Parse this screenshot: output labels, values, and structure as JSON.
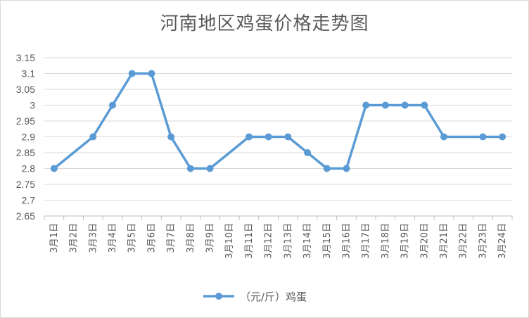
{
  "chart_data": {
    "type": "line",
    "title": "河南地区鸡蛋价格走势图",
    "categories": [
      "3月1日",
      "3月2日",
      "3月3日",
      "3月4日",
      "3月5日",
      "3月6日",
      "3月7日",
      "3月8日",
      "3月9日",
      "3月10日",
      "3月11日",
      "3月12日",
      "3月13日",
      "3月14日",
      "3月15日",
      "3月16日",
      "3月17日",
      "3月18日",
      "3月19日",
      "3月20日",
      "3月21日",
      "3月22日",
      "3月23日",
      "3月24日"
    ],
    "series": [
      {
        "name": "（元/斤）鸡蛋",
        "color": "#5b9bd5",
        "values": [
          2.8,
          null,
          2.9,
          3.0,
          3.1,
          3.1,
          2.9,
          2.8,
          2.8,
          null,
          2.9,
          2.9,
          2.9,
          2.85,
          2.8,
          2.8,
          3.0,
          3.0,
          3.0,
          3.0,
          2.9,
          null,
          2.9,
          2.9
        ]
      }
    ],
    "ylim": [
      2.65,
      3.15
    ],
    "yticks": [
      "2.65",
      "2.7",
      "2.75",
      "2.8",
      "2.85",
      "2.9",
      "2.95",
      "3",
      "3.05",
      "3.1",
      "3.15"
    ],
    "grid": true,
    "legend": "bottom",
    "gap_mode": "span"
  }
}
